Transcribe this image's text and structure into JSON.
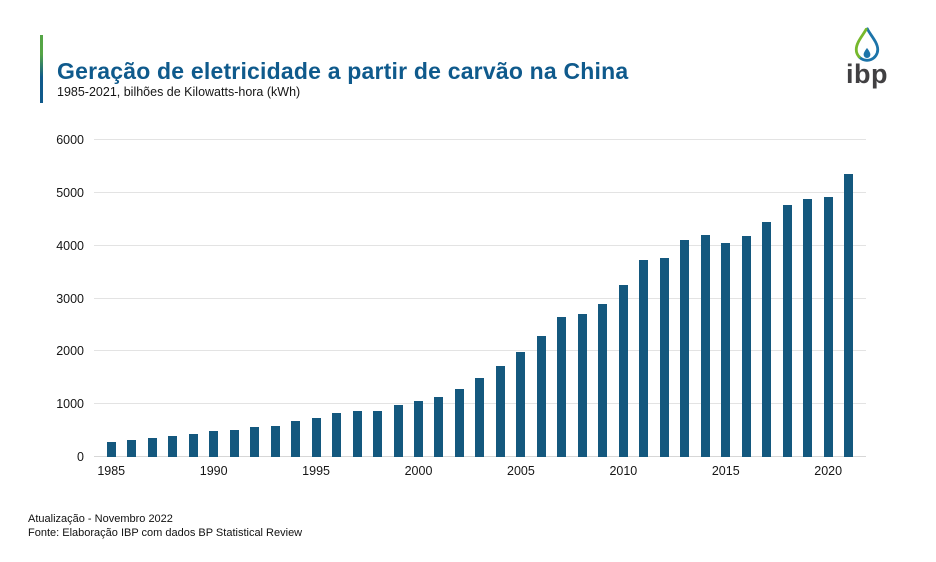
{
  "header": {
    "title": "Geração de eletricidade a partir de carvão na China",
    "subtitle": "1985-2021, bilhões de Kilowatts-hora (kWh)"
  },
  "logo": {
    "text": "ibp"
  },
  "footer": {
    "line1": "Atualização - Novembro 2022",
    "line2": "Fonte: Elaboração IBP com dados BP Statistical Review"
  },
  "colors": {
    "bar": "#14587E",
    "title": "#0F5A8C",
    "accent_green": "#55A546",
    "accent_blue": "#105A8B",
    "gridline": "#E3E3E3",
    "logo_text": "#414042",
    "logo_blue": "#1C74A9",
    "logo_green": "#76B82D"
  },
  "chart_data": {
    "type": "bar",
    "title": "Geração de eletricidade a partir de carvão na China",
    "subtitle": "1985-2021, bilhões de Kilowatts-hora (kWh)",
    "xlabel": "",
    "ylabel": "bilhões de kWh",
    "ylim": [
      0,
      6000
    ],
    "yticks": [
      0,
      1000,
      2000,
      3000,
      4000,
      5000,
      6000
    ],
    "xticks": [
      1985,
      1990,
      1995,
      2000,
      2005,
      2010,
      2015,
      2020
    ],
    "grid": true,
    "legend": false,
    "bar_color": "#14587E",
    "categories": [
      1985,
      1986,
      1987,
      1988,
      1989,
      1990,
      1991,
      1992,
      1993,
      1994,
      1995,
      1996,
      1997,
      1998,
      1999,
      2000,
      2001,
      2002,
      2003,
      2004,
      2005,
      2006,
      2007,
      2008,
      2009,
      2010,
      2011,
      2012,
      2013,
      2014,
      2015,
      2016,
      2017,
      2018,
      2019,
      2020,
      2021
    ],
    "values": [
      280,
      330,
      360,
      400,
      445,
      485,
      520,
      565,
      590,
      685,
      740,
      825,
      870,
      880,
      980,
      1060,
      1145,
      1280,
      1505,
      1715,
      1980,
      2290,
      2650,
      2700,
      2900,
      3250,
      3720,
      3765,
      4100,
      4210,
      4050,
      4175,
      4450,
      4775,
      4890,
      4920,
      5350
    ]
  }
}
